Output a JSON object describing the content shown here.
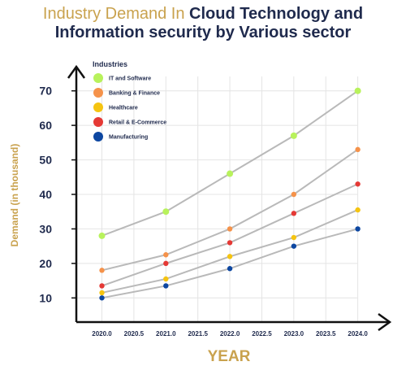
{
  "chart_data": {
    "type": "line",
    "title_part1": "Industry Demand In",
    "title_part2": "Cloud Technology and",
    "title_part3": "Information security  by Various sector",
    "xlabel": "YEAR",
    "ylabel": "Demand  (in thousand)",
    "x_ticks": [
      "2020.0",
      "2020.5",
      "2021.0",
      "2021.5",
      "2022.0",
      "2022.5",
      "2023.0",
      "2023.5",
      "2024.0"
    ],
    "y_ticks": [
      "10",
      "20",
      "30",
      "40",
      "50",
      "60",
      "70"
    ],
    "xlim": [
      2019.6,
      2024.5
    ],
    "ylim": [
      3,
      77
    ],
    "grid": true,
    "legend_title": "Industries",
    "legend_position": "top-left",
    "line_color": "#b9b9b9",
    "series": [
      {
        "name": "IT and Software",
        "color": "#b8f25c",
        "x": [
          2020,
          2021,
          2022,
          2023,
          2024
        ],
        "y": [
          28,
          35,
          46,
          57,
          70
        ]
      },
      {
        "name": "Banking & Finance",
        "color": "#f5924a",
        "x": [
          2020,
          2021,
          2022,
          2023,
          2024
        ],
        "y": [
          18,
          22.5,
          30,
          40,
          53
        ]
      },
      {
        "name": "Healthcare",
        "color": "#f5c411",
        "x": [
          2020,
          2021,
          2022,
          2023,
          2024
        ],
        "y": [
          11.5,
          15.5,
          22,
          27.5,
          35.5
        ]
      },
      {
        "name": "Retail & E-Commerce",
        "color": "#e53935",
        "x": [
          2020,
          2021,
          2022,
          2023,
          2024
        ],
        "y": [
          13.5,
          20,
          26,
          34.5,
          43
        ]
      },
      {
        "name": "Manufacturing",
        "color": "#0d47a1",
        "x": [
          2020,
          2021,
          2022,
          2023,
          2024
        ],
        "y": [
          10,
          13.5,
          18.5,
          25,
          30
        ]
      }
    ]
  }
}
